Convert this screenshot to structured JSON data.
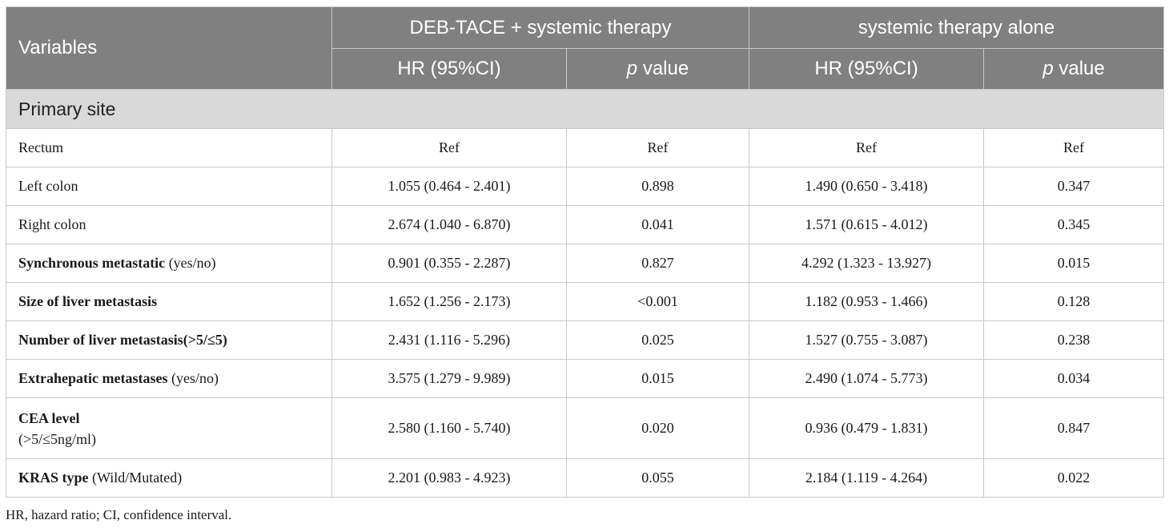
{
  "table": {
    "header": {
      "variables": "Variables",
      "group1": "DEB-TACE + systemic therapy",
      "group2": "systemic therapy alone",
      "hr_label": "HR (95%CI)",
      "p_label_italic": "p",
      "p_label_rest": " value"
    },
    "section_primary_site": "Primary site",
    "rows": [
      {
        "label": "Rectum",
        "hr1": "Ref",
        "p1": "Ref",
        "hr2": "Ref",
        "p2": "Ref"
      },
      {
        "label": "Left colon",
        "hr1": "1.055 (0.464 - 2.401)",
        "p1": "0.898",
        "hr2": "1.490 (0.650 - 3.418)",
        "p2": "0.347"
      },
      {
        "label": "Right colon",
        "hr1": "2.674 (1.040 - 6.870)",
        "p1": "0.041",
        "hr2": "1.571 (0.615 - 4.012)",
        "p2": "0.345"
      },
      {
        "label_bold": "Synchronous metastatic",
        "label_rest": " (yes/no)",
        "hr1": "0.901 (0.355 - 2.287)",
        "p1": "0.827",
        "hr2": "4.292 (1.323 - 13.927)",
        "p2": "0.015"
      },
      {
        "label_bold": "Size of liver metastasis",
        "hr1": "1.652 (1.256 - 2.173)",
        "p1": "<0.001",
        "hr2": "1.182 (0.953 - 1.466)",
        "p2": "0.128"
      },
      {
        "label_bold": "Number of liver metastasis(>5/≤5)",
        "hr1": "2.431 (1.116 - 5.296)",
        "p1": "0.025",
        "hr2": "1.527 (0.755 - 3.087)",
        "p2": "0.238"
      },
      {
        "label_bold": "Extrahepatic metastases",
        "label_rest": " (yes/no)",
        "hr1": "3.575 (1.279 - 9.989)",
        "p1": "0.015",
        "hr2": "2.490 (1.074 - 5.773)",
        "p2": "0.034"
      },
      {
        "label_bold": "CEA level",
        "label_line2": "(>5/≤5ng/ml)",
        "hr1": "2.580 (1.160 - 5.740)",
        "p1": "0.020",
        "hr2": "0.936 (0.479 - 1.831)",
        "p2": "0.847"
      },
      {
        "label_bold": "KRAS type",
        "label_rest": " (Wild/Mutated)",
        "hr1": "2.201 (0.983 - 4.923)",
        "p1": "0.055",
        "hr2": "2.184 (1.119 - 4.264)",
        "p2": "0.022"
      }
    ]
  },
  "footnote": "HR, hazard ratio; CI, confidence interval."
}
